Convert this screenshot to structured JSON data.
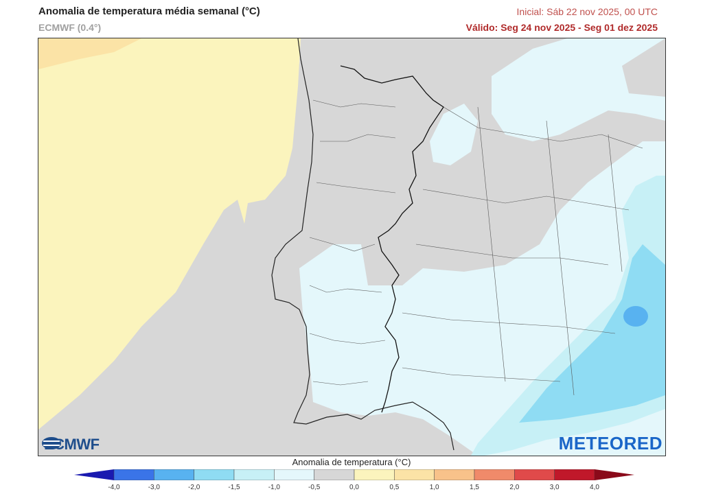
{
  "header": {
    "title": "Anomalia de temperatura média semanal (°C)",
    "model": "ECMWF (0.4°)",
    "initial": "Inicial: Sáb 22 nov 2025, 00 UTC",
    "valid": "Válido: Seg 24 nov 2025 - Seg 01 dez 2025"
  },
  "logos": {
    "left": "ECMWF",
    "right": "METEORED"
  },
  "legend": {
    "title": "Anomalia de temperatura (°C)",
    "ticks": [
      "-4,0",
      "-3,0",
      "-2,0",
      "-1,5",
      "-1,0",
      "-0,5",
      "0,0",
      "0,5",
      "1,0",
      "1,5",
      "2,0",
      "3,0",
      "4,0"
    ],
    "colors": [
      "#2a3fd6",
      "#3a74e8",
      "#58b2f0",
      "#8fdcf3",
      "#c7f0f6",
      "#e4f7fb",
      "#d7d7d7",
      "#fbf4bd",
      "#fbe3a6",
      "#f8c28a",
      "#f08a6a",
      "#e04a4a",
      "#c0182a"
    ],
    "min_arrow_color": "#1a1ab0",
    "max_arrow_color": "#8a0a1a"
  },
  "colors": {
    "ocean_positive": "#fbf4bd",
    "neutral": "#d7d7d7",
    "light_negative": "#e4f7fb",
    "medium_negative": "#c7f0f6",
    "darker_negative": "#8fdcf3",
    "strong_negative": "#58b2f0",
    "warm_corner": "#fbe3a6"
  }
}
